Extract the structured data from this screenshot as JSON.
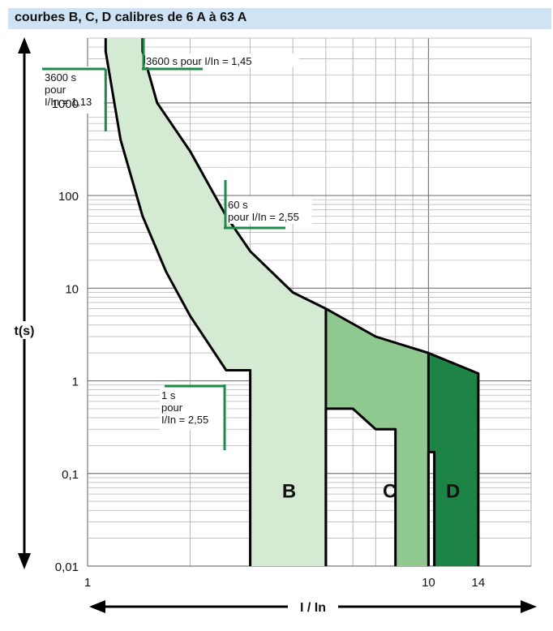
{
  "header": {
    "title": "courbes B, C, D calibres de 6 A à 63 A"
  },
  "colors": {
    "accent_green": "#1e8a4a",
    "zone_b": "#d5ead2",
    "zone_c": "#8fc98f",
    "zone_d": "#1d8446",
    "title_bg": "#cfe3f4"
  },
  "chart_data": {
    "type": "area",
    "x_scale": "log",
    "y_scale": "log",
    "xlim": [
      1,
      20
    ],
    "ylim": [
      0.01,
      5000
    ],
    "xlabel": "I / In",
    "ylabel": "t(s)",
    "x_tick_labels": [
      {
        "value": 1,
        "label": "1"
      },
      {
        "value": 10,
        "label": "10"
      },
      {
        "value": 14,
        "label": "14"
      }
    ],
    "y_tick_labels": [
      {
        "value": 1000,
        "label": "1000"
      },
      {
        "value": 100,
        "label": "100"
      },
      {
        "value": 10,
        "label": "10"
      },
      {
        "value": 1,
        "label": "1"
      },
      {
        "value": 0.1,
        "label": "0,1"
      },
      {
        "value": 0.01,
        "label": "0,01"
      }
    ],
    "grid": true,
    "annotations": [
      {
        "lines": [
          "3600 s",
          "pour",
          "I/In = 1,13"
        ],
        "x": 1.13,
        "y": 3600
      },
      {
        "lines": [
          "3600 s pour I/In = 1,45"
        ],
        "x": 1.45,
        "y": 3600
      },
      {
        "lines": [
          "60 s",
          "pour I/In = 2,55"
        ],
        "x": 2.55,
        "y": 60
      },
      {
        "lines": [
          "1 s",
          "pour",
          "I/In = 2,55"
        ],
        "x": 2.55,
        "y": 1
      }
    ],
    "series": [
      {
        "name": "B",
        "x": [
          1.13,
          1.25,
          1.45,
          1.7,
          2.0,
          2.55,
          3.0
        ],
        "y": [
          3600,
          400,
          60,
          15,
          5,
          1.3,
          1.3
        ]
      },
      {
        "name": "C",
        "x": [
          5.0,
          6.0,
          7.0,
          8.0
        ],
        "y": [
          0.5,
          0.5,
          0.3,
          0.3
        ]
      },
      {
        "name": "D",
        "x": [
          10.0,
          10.4
        ],
        "y": [
          0.17,
          0.17
        ]
      },
      {
        "name": "upper",
        "x": [
          1.45,
          1.6,
          2.0,
          2.55,
          3.0,
          4.0,
          5.0,
          7.0,
          10.0,
          14.0
        ],
        "y": [
          3600,
          1000,
          300,
          60,
          25,
          9,
          6,
          3,
          2,
          1.2
        ]
      }
    ],
    "vertical_limits": [
      {
        "x": 5,
        "label": "B"
      },
      {
        "x": 10,
        "label": "C"
      },
      {
        "x": 14,
        "label": "D"
      }
    ]
  }
}
